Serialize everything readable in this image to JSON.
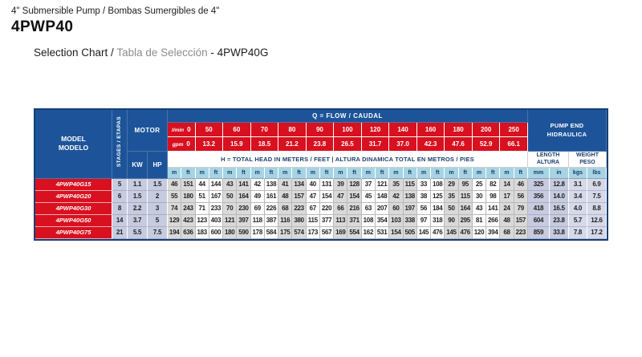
{
  "page": {
    "title_line": "4\" Submersible Pump / Bombas Sumergibles de 4\"",
    "model_title": "4PWP40",
    "subtitle": {
      "en": "Selection Chart /",
      "es": "Tabla de Selección",
      "suffix": "- 4PWP40G"
    }
  },
  "table": {
    "flow_title": "Q = FLOW / CAUDAL",
    "model_header": {
      "en": "MODEL",
      "es": "MODELO"
    },
    "stages_header": "STAGES / ETAPAS",
    "motor_header": "MOTOR",
    "kw_header": "KW",
    "hp_header": "HP",
    "flow_rows": {
      "lmin_label": "l/min",
      "gpm_label": "gpm",
      "lmin": [
        "0",
        "50",
        "60",
        "70",
        "80",
        "90",
        "100",
        "120",
        "140",
        "160",
        "180",
        "200",
        "250"
      ],
      "gpm": [
        "0",
        "13.2",
        "15.9",
        "18.5",
        "21.2",
        "23.8",
        "26.5",
        "31.7",
        "37.0",
        "42.3",
        "47.6",
        "52.9",
        "66.1"
      ]
    },
    "head_title": "H = TOTAL HEAD IN METERS / FEET | ALTURA DINAMICA TOTAL EN METROS / PIES",
    "pump_end_header": {
      "en": "PUMP END",
      "es": "HIDRAULICA"
    },
    "length_header": {
      "en": "LENGTH",
      "es": "ALTURA"
    },
    "weight_header": {
      "en": "WEIGHT",
      "es": "PESO"
    },
    "units": {
      "m": "m",
      "ft": "ft",
      "mm": "mm",
      "in": "in",
      "kgs": "kgs",
      "lbs": "lbs"
    },
    "rows": [
      {
        "model": "4PWP40G15",
        "stages": "5",
        "kw": "1.1",
        "hp": "1.5",
        "head_m_ft": [
          [
            "46",
            "151"
          ],
          [
            "44",
            "144"
          ],
          [
            "43",
            "141"
          ],
          [
            "42",
            "138"
          ],
          [
            "41",
            "134"
          ],
          [
            "40",
            "131"
          ],
          [
            "39",
            "128"
          ],
          [
            "37",
            "121"
          ],
          [
            "35",
            "115"
          ],
          [
            "33",
            "108"
          ],
          [
            "29",
            "95"
          ],
          [
            "25",
            "82"
          ],
          [
            "14",
            "46"
          ]
        ],
        "length_mm": "325",
        "length_in": "12.8",
        "weight_kg": "3.1",
        "weight_lb": "6.9"
      },
      {
        "model": "4PWP40G20",
        "stages": "6",
        "kw": "1.5",
        "hp": "2",
        "head_m_ft": [
          [
            "55",
            "180"
          ],
          [
            "51",
            "167"
          ],
          [
            "50",
            "164"
          ],
          [
            "49",
            "161"
          ],
          [
            "48",
            "157"
          ],
          [
            "47",
            "154"
          ],
          [
            "47",
            "154"
          ],
          [
            "45",
            "148"
          ],
          [
            "42",
            "138"
          ],
          [
            "38",
            "125"
          ],
          [
            "35",
            "115"
          ],
          [
            "30",
            "98"
          ],
          [
            "17",
            "56"
          ]
        ],
        "length_mm": "356",
        "length_in": "14.0",
        "weight_kg": "3.4",
        "weight_lb": "7.5"
      },
      {
        "model": "4PWP40G30",
        "stages": "8",
        "kw": "2.2",
        "hp": "3",
        "head_m_ft": [
          [
            "74",
            "243"
          ],
          [
            "71",
            "233"
          ],
          [
            "70",
            "230"
          ],
          [
            "69",
            "226"
          ],
          [
            "68",
            "223"
          ],
          [
            "67",
            "220"
          ],
          [
            "66",
            "216"
          ],
          [
            "63",
            "207"
          ],
          [
            "60",
            "197"
          ],
          [
            "56",
            "184"
          ],
          [
            "50",
            "164"
          ],
          [
            "43",
            "141"
          ],
          [
            "24",
            "79"
          ]
        ],
        "length_mm": "418",
        "length_in": "16.5",
        "weight_kg": "4.0",
        "weight_lb": "8.8"
      },
      {
        "model": "4PWP40G50",
        "stages": "14",
        "kw": "3.7",
        "hp": "5",
        "head_m_ft": [
          [
            "129",
            "423"
          ],
          [
            "123",
            "403"
          ],
          [
            "121",
            "397"
          ],
          [
            "118",
            "387"
          ],
          [
            "116",
            "380"
          ],
          [
            "115",
            "377"
          ],
          [
            "113",
            "371"
          ],
          [
            "108",
            "354"
          ],
          [
            "103",
            "338"
          ],
          [
            "97",
            "318"
          ],
          [
            "90",
            "295"
          ],
          [
            "81",
            "266"
          ],
          [
            "48",
            "157"
          ]
        ],
        "length_mm": "604",
        "length_in": "23.8",
        "weight_kg": "5.7",
        "weight_lb": "12.6"
      },
      {
        "model": "4PWP40G75",
        "stages": "21",
        "kw": "5.5",
        "hp": "7.5",
        "head_m_ft": [
          [
            "194",
            "636"
          ],
          [
            "183",
            "600"
          ],
          [
            "180",
            "590"
          ],
          [
            "178",
            "584"
          ],
          [
            "175",
            "574"
          ],
          [
            "173",
            "567"
          ],
          [
            "169",
            "554"
          ],
          [
            "162",
            "531"
          ],
          [
            "154",
            "505"
          ],
          [
            "145",
            "476"
          ],
          [
            "145",
            "476"
          ],
          [
            "120",
            "394"
          ],
          [
            "68",
            "223"
          ]
        ],
        "length_mm": "859",
        "length_in": "33.8",
        "weight_kg": "7.8",
        "weight_lb": "17.2"
      }
    ]
  },
  "colors": {
    "header_blue": "#1d5499",
    "flow_red": "#d8101f",
    "units_light_blue": "#a7d4e4",
    "navy_text": "#1c3e6e",
    "shaded_cell_gray": "#d9d9d9",
    "periwinkle_cell": "#c6cbdf",
    "periwinkle_light_cell": "#d6d9e8"
  }
}
